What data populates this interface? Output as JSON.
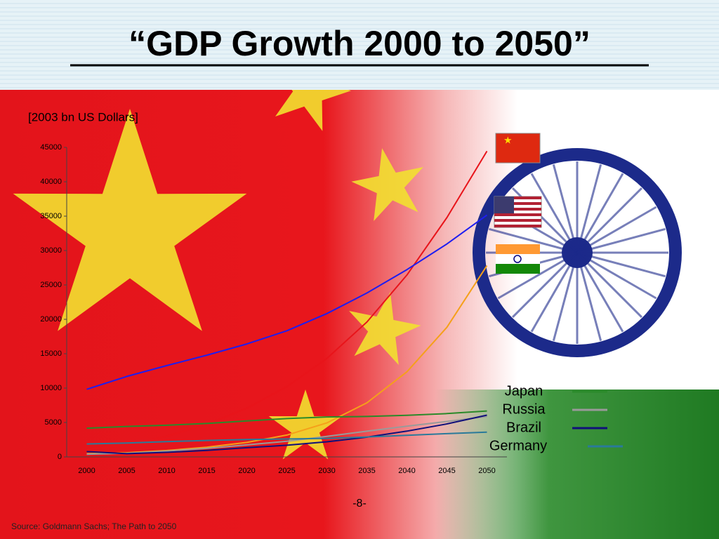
{
  "chart_data": {
    "type": "line",
    "title": "“GDP Growth 2000 to 2050”",
    "y_label": "[2003 bn US Dollars]",
    "categories": [
      "2000",
      "2005",
      "2010",
      "2015",
      "2020",
      "2025",
      "2030",
      "2035",
      "2040",
      "2045",
      "2050"
    ],
    "ylim": [
      0,
      45000
    ],
    "yticks": [
      0,
      5000,
      10000,
      15000,
      20000,
      25000,
      30000,
      35000,
      40000,
      45000
    ],
    "series": [
      {
        "color": "#e8141a",
        "values": [
          1078,
          1724,
          2998,
          4754,
          7070,
          10213,
          14312,
          19605,
          26439,
          34799,
          44453
        ]
      },
      {
        "color": "#1e1ef0",
        "values": [
          9825,
          11697,
          13271,
          14786,
          16415,
          18340,
          20833,
          23828,
          27229,
          30956,
          35165
        ]
      },
      {
        "color": "#f5a01a",
        "values": [
          469,
          604,
          929,
          1411,
          2104,
          3174,
          4935,
          7854,
          12367,
          18847,
          27803
        ]
      },
      {
        "name": "Japan",
        "color": "#2a8a2a",
        "values": [
          4176,
          4427,
          4601,
          4858,
          5221,
          5567,
          5810,
          5882,
          6039,
          6297,
          6673
        ]
      },
      {
        "name": "Russia",
        "color": "#9a9a9a",
        "values": [
          391,
          534,
          847,
          1232,
          1741,
          2264,
          2980,
          3734,
          4467,
          5156,
          5870
        ]
      },
      {
        "name": "Brazil",
        "color": "#10107a",
        "values": [
          762,
          468,
          668,
          952,
          1333,
          1695,
          2189,
          2871,
          3740,
          4794,
          6074
        ]
      },
      {
        "name": "Germany",
        "color": "#2a7a9a",
        "values": [
          1875,
          2011,
          2212,
          2386,
          2524,
          2604,
          2697,
          2903,
          3147,
          3381,
          3603
        ]
      }
    ]
  },
  "page_number": "-8-",
  "source": "Source: Goldmann Sachs; The Path to 2050"
}
